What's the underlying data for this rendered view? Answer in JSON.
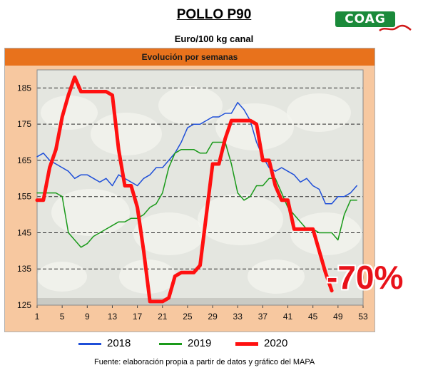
{
  "header": {
    "title": "POLLO P90",
    "subtitle": "Euro/100 kg canal",
    "logo_text": "COAG"
  },
  "footer": {
    "source": "Fuente: elaboración propia a partir de datos y gráfico del MAPA"
  },
  "colors": {
    "plot_bg": "#e4e6e0",
    "frame_bg": "#f7c8a0",
    "band": "#e8721c",
    "s2018": "#1f4fd8",
    "s2019": "#1a9a1a",
    "s2020": "#ff1010"
  },
  "chart_data": {
    "type": "line",
    "title": "Evolución por semanas",
    "xlabel": "",
    "ylabel": "",
    "xlim": [
      1,
      53
    ],
    "ylim": [
      125,
      190
    ],
    "x_ticks": [
      1,
      5,
      9,
      13,
      17,
      21,
      25,
      29,
      33,
      37,
      41,
      45,
      49,
      53
    ],
    "y_ticks": [
      125,
      135,
      145,
      155,
      165,
      175,
      185
    ],
    "grid": "horizontal-dashed",
    "legend_position": "bottom",
    "annotation": "-70%",
    "series": [
      {
        "name": "2018",
        "color": "#1f4fd8",
        "width": 1.5,
        "x": [
          1,
          2,
          3,
          4,
          5,
          6,
          7,
          8,
          9,
          10,
          11,
          12,
          13,
          14,
          15,
          16,
          17,
          18,
          19,
          20,
          21,
          22,
          23,
          24,
          25,
          26,
          27,
          28,
          29,
          30,
          31,
          32,
          33,
          34,
          35,
          36,
          37,
          38,
          39,
          40,
          41,
          42,
          43,
          44,
          45,
          46,
          47,
          48,
          49,
          50,
          51,
          52
        ],
        "values": [
          166,
          167,
          165,
          164,
          163,
          162,
          160,
          161,
          161,
          160,
          159,
          160,
          158,
          161,
          160,
          159,
          158,
          160,
          161,
          163,
          163,
          165,
          167,
          170,
          174,
          175,
          175,
          176,
          177,
          177,
          178,
          178,
          181,
          179,
          176,
          170,
          166,
          163,
          162,
          163,
          162,
          161,
          159,
          160,
          158,
          157,
          153,
          153,
          155,
          155,
          156,
          158
        ]
      },
      {
        "name": "2019",
        "color": "#1a9a1a",
        "width": 1.5,
        "x": [
          1,
          2,
          3,
          4,
          5,
          6,
          7,
          8,
          9,
          10,
          11,
          12,
          13,
          14,
          15,
          16,
          17,
          18,
          19,
          20,
          21,
          22,
          23,
          24,
          25,
          26,
          27,
          28,
          29,
          30,
          31,
          32,
          33,
          34,
          35,
          36,
          37,
          38,
          39,
          40,
          41,
          42,
          43,
          44,
          45,
          46,
          47,
          48,
          49,
          50,
          51,
          52
        ],
        "values": [
          156,
          156,
          156,
          156,
          155,
          145,
          143,
          141,
          142,
          144,
          145,
          146,
          147,
          148,
          148,
          149,
          149,
          150,
          152,
          153,
          156,
          163,
          167,
          168,
          168,
          168,
          167,
          167,
          170,
          170,
          170,
          164,
          156,
          154,
          155,
          158,
          158,
          160,
          160,
          156,
          152,
          150,
          148,
          146,
          146,
          145,
          145,
          145,
          143,
          150,
          154,
          154
        ]
      },
      {
        "name": "2020",
        "color": "#ff1010",
        "width": 5,
        "x": [
          1,
          2,
          3,
          4,
          5,
          6,
          7,
          8,
          9,
          10,
          11,
          12,
          13,
          14,
          15,
          16,
          17,
          18,
          19,
          20,
          21,
          22,
          23,
          24,
          25,
          26,
          27,
          28,
          29,
          30,
          31,
          32,
          33,
          34,
          35,
          36,
          37,
          38,
          39,
          40,
          41,
          42,
          43,
          44,
          45,
          46,
          47,
          48
        ],
        "values": [
          154,
          154,
          163,
          168,
          177,
          183,
          188,
          184,
          184,
          184,
          184,
          184,
          183,
          168,
          158,
          158,
          152,
          140,
          126,
          126,
          126,
          127,
          133,
          134,
          134,
          134,
          136,
          150,
          164,
          164,
          171,
          176,
          176,
          176,
          176,
          175,
          165,
          165,
          158,
          154,
          154,
          146,
          146,
          146,
          146,
          140,
          134,
          129
        ]
      }
    ]
  }
}
